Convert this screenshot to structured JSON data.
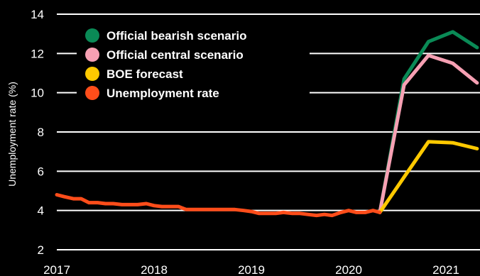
{
  "chart_data": {
    "type": "line",
    "title": "",
    "xlabel": "",
    "ylabel": "Unemployment rate (%)",
    "ylim": [
      2,
      14
    ],
    "yticks": [
      2,
      4,
      6,
      8,
      10,
      12,
      14
    ],
    "xlim": [
      2017.0,
      2021.35
    ],
    "xticks": [
      2017,
      2018,
      2019,
      2020,
      2021
    ],
    "grid": "horizontal",
    "legend_position": "top-left",
    "series": [
      {
        "name": "Official bearish scenario",
        "color": "#0a8a56",
        "x": [
          2020.32,
          2020.57,
          2020.82,
          2021.07,
          2021.32
        ],
        "y": [
          3.9,
          10.7,
          12.6,
          13.1,
          12.3
        ]
      },
      {
        "name": "Official central scenario",
        "color": "#f6a0b3",
        "x": [
          2020.32,
          2020.57,
          2020.82,
          2021.07,
          2021.32
        ],
        "y": [
          3.9,
          10.4,
          11.9,
          11.5,
          10.5
        ]
      },
      {
        "name": "BOE forecast",
        "color": "#ffc900",
        "x": [
          2020.32,
          2020.57,
          2020.82,
          2021.07,
          2021.32
        ],
        "y": [
          3.9,
          5.7,
          7.5,
          7.45,
          7.15
        ]
      },
      {
        "name": "Unemployment rate",
        "color": "#ff4d1a",
        "x": [
          2017.0,
          2017.08,
          2017.17,
          2017.25,
          2017.33,
          2017.42,
          2017.5,
          2017.58,
          2017.67,
          2017.75,
          2017.83,
          2017.92,
          2018.0,
          2018.08,
          2018.17,
          2018.25,
          2018.33,
          2018.42,
          2018.5,
          2018.58,
          2018.67,
          2018.75,
          2018.83,
          2018.92,
          2019.0,
          2019.08,
          2019.17,
          2019.25,
          2019.33,
          2019.42,
          2019.5,
          2019.58,
          2019.67,
          2019.75,
          2019.83,
          2019.92,
          2020.0,
          2020.08,
          2020.17,
          2020.25,
          2020.32
        ],
        "y": [
          4.8,
          4.7,
          4.6,
          4.6,
          4.4,
          4.4,
          4.35,
          4.35,
          4.3,
          4.3,
          4.3,
          4.35,
          4.25,
          4.2,
          4.2,
          4.2,
          4.05,
          4.05,
          4.05,
          4.05,
          4.05,
          4.05,
          4.05,
          4.0,
          3.95,
          3.85,
          3.85,
          3.85,
          3.9,
          3.85,
          3.85,
          3.8,
          3.75,
          3.8,
          3.75,
          3.9,
          4.0,
          3.9,
          3.9,
          4.0,
          3.9
        ]
      }
    ]
  }
}
